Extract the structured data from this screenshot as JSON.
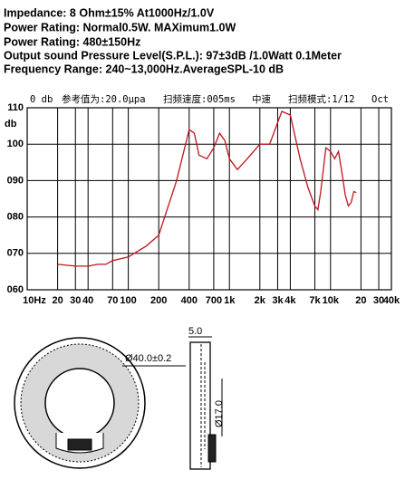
{
  "header": {
    "lines": [
      "Impedance: 8 Ohm±15%  At1000Hz/1.0V",
      "Power Rating: Normal0.5W. MAXimum1.0W",
      "Power Rating: 480±150Hz",
      "Output sound Pressure Level(S.P.L.): 97±3dB /1.0Watt 0.1Meter",
      "Frequency Range: 240~13,000Hz.AverageSPL-10 dB"
    ]
  },
  "chart_data": {
    "type": "line",
    "top_labels": [
      "0 db",
      "参考值为:20.0μpa",
      "扫频速度:005ms",
      "中速",
      "扫频模式:1/12",
      "Oct"
    ],
    "y_label": "db",
    "x_scale": "log",
    "grid": true,
    "xlim": [
      10,
      40000
    ],
    "ylim": [
      60,
      110
    ],
    "xticks": [
      {
        "value": 10,
        "label": "10Hz"
      },
      20,
      30,
      40,
      70,
      100,
      200,
      400,
      700,
      {
        "value": 1000,
        "label": "1k"
      },
      {
        "value": 2000,
        "label": "2k"
      },
      {
        "value": 3000,
        "label": "3k"
      },
      {
        "value": 4000,
        "label": "4k"
      },
      {
        "value": 7000,
        "label": "7k"
      },
      {
        "value": 10000,
        "label": "10k"
      },
      {
        "value": 20000,
        "label": "20"
      },
      {
        "value": 30000,
        "label": "30"
      },
      {
        "value": 40000,
        "label": "40k"
      }
    ],
    "yticks": [
      {
        "value": 60,
        "label": "060"
      },
      {
        "value": 70,
        "label": "070"
      },
      {
        "value": 80,
        "label": "080"
      },
      {
        "value": 90,
        "label": "090"
      },
      100,
      110
    ],
    "series": [
      {
        "color": "#c0141c",
        "x": [
          20,
          30,
          40,
          50,
          60,
          70,
          100,
          150,
          200,
          300,
          400,
          450,
          500,
          600,
          700,
          800,
          900,
          1000,
          1200,
          1500,
          2000,
          2500,
          3000,
          3300,
          4000,
          5000,
          6000,
          7000,
          7500,
          8000,
          9000,
          10000,
          11000,
          12000,
          13000,
          14000,
          15000,
          16000,
          17000,
          18000
        ],
        "values": [
          67,
          66.5,
          66.5,
          67,
          67,
          68,
          69,
          72,
          75,
          90,
          104,
          103,
          97,
          96,
          99,
          103,
          101,
          96,
          93,
          96,
          100,
          100,
          106,
          109,
          108,
          96,
          88,
          83,
          82,
          87,
          99,
          98,
          96,
          98,
          92,
          86,
          83,
          84,
          87,
          86.7
        ]
      }
    ]
  },
  "drawing": {
    "width_label": "5.0",
    "outer_diameter": "Ø40.0±0.2",
    "inner_diameter": "Ø17.0"
  }
}
